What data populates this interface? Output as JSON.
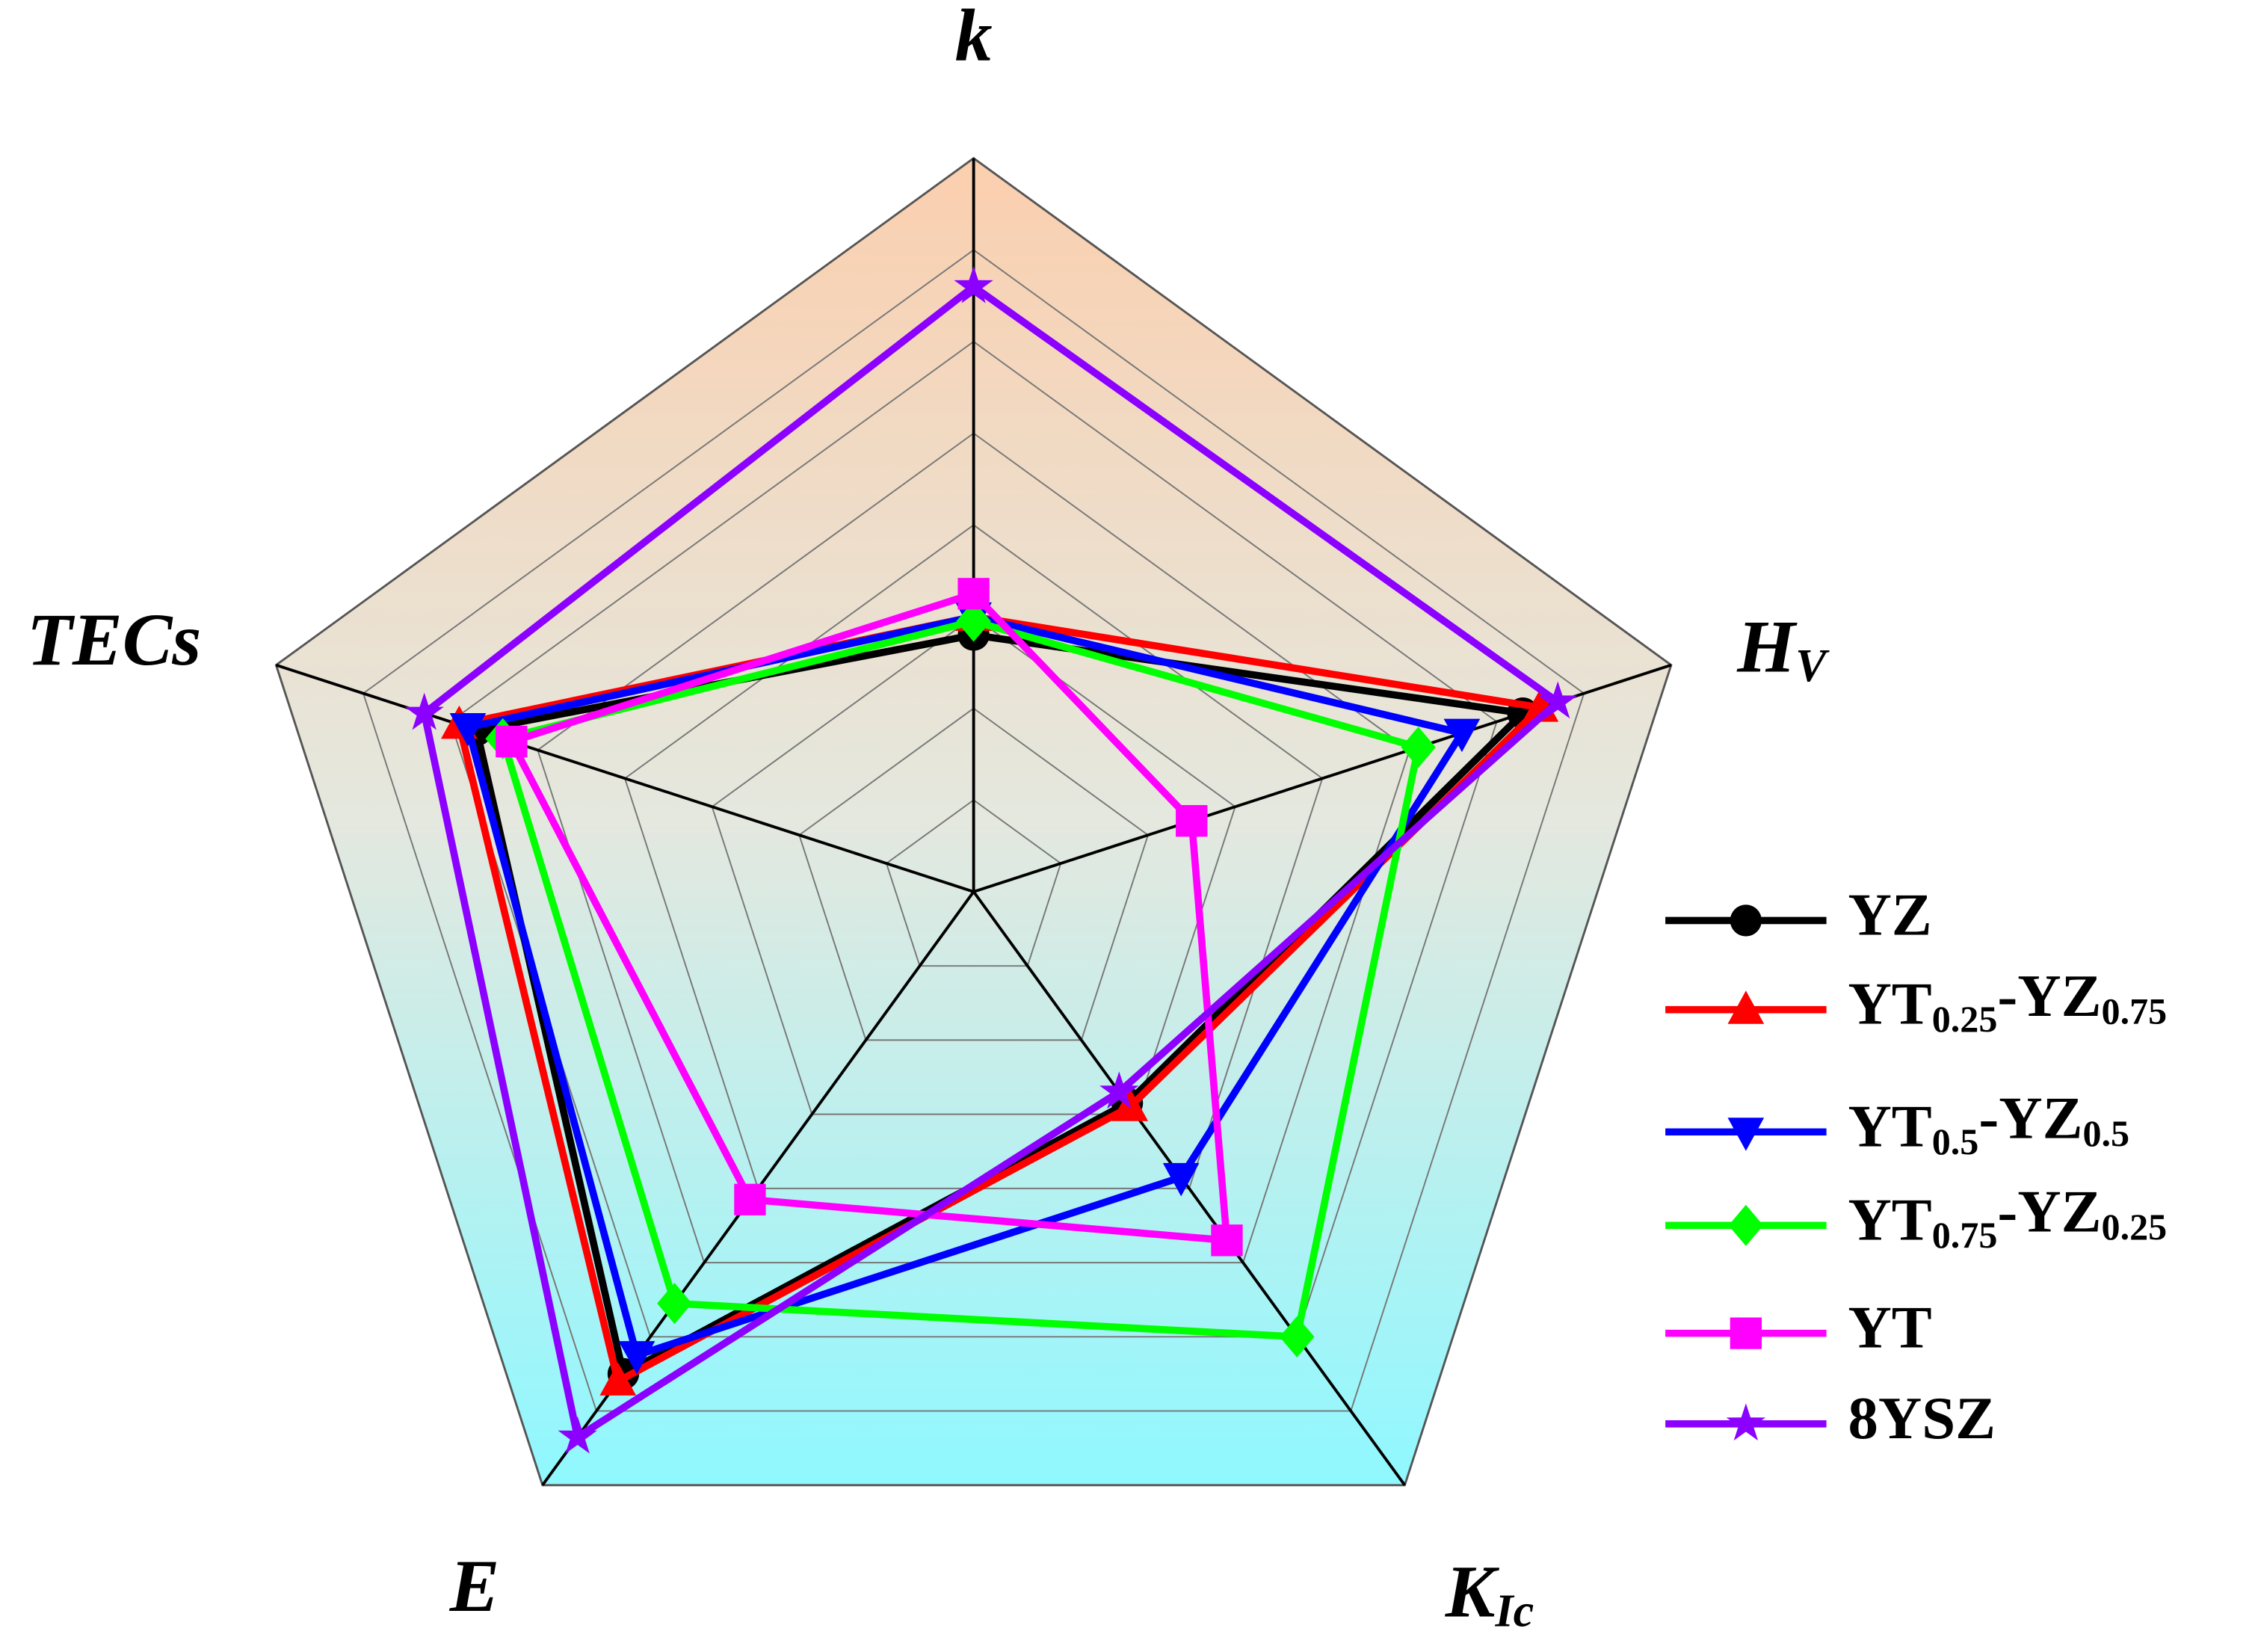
{
  "chart_data": {
    "type": "radar",
    "categories": [
      "k",
      "HV",
      "KIc",
      "E",
      "TECs"
    ],
    "rlim": [
      0,
      8
    ],
    "rticks": [
      1,
      2,
      3,
      4,
      5,
      6,
      7,
      8
    ],
    "grid": true,
    "legend": "right",
    "series": [
      {
        "name": "YZ",
        "color": "#000000",
        "marker": "circle",
        "values": [
          2.8,
          6.3,
          2.85,
          6.5,
          5.7
        ]
      },
      {
        "name": "YT0.25-YZ0.75",
        "color": "#ff0000",
        "marker": "triangle-up",
        "values": [
          3.0,
          6.5,
          2.9,
          6.6,
          5.9
        ]
      },
      {
        "name": "YT0.5-YZ0.5",
        "color": "#0000ff",
        "marker": "triangle-down",
        "values": [
          3.0,
          5.6,
          3.85,
          6.25,
          5.8
        ]
      },
      {
        "name": "YT0.75-YZ0.25",
        "color": "#00ff00",
        "marker": "diamond",
        "values": [
          2.95,
          5.1,
          6.0,
          5.55,
          5.4
        ]
      },
      {
        "name": "YT",
        "color": "#ff00ff",
        "marker": "square",
        "values": [
          3.25,
          2.5,
          4.7,
          4.15,
          5.3
        ]
      },
      {
        "name": "8YSZ",
        "color": "#8b00ff",
        "marker": "star",
        "values": [
          6.6,
          6.7,
          2.7,
          7.35,
          6.3
        ]
      }
    ]
  }
}
